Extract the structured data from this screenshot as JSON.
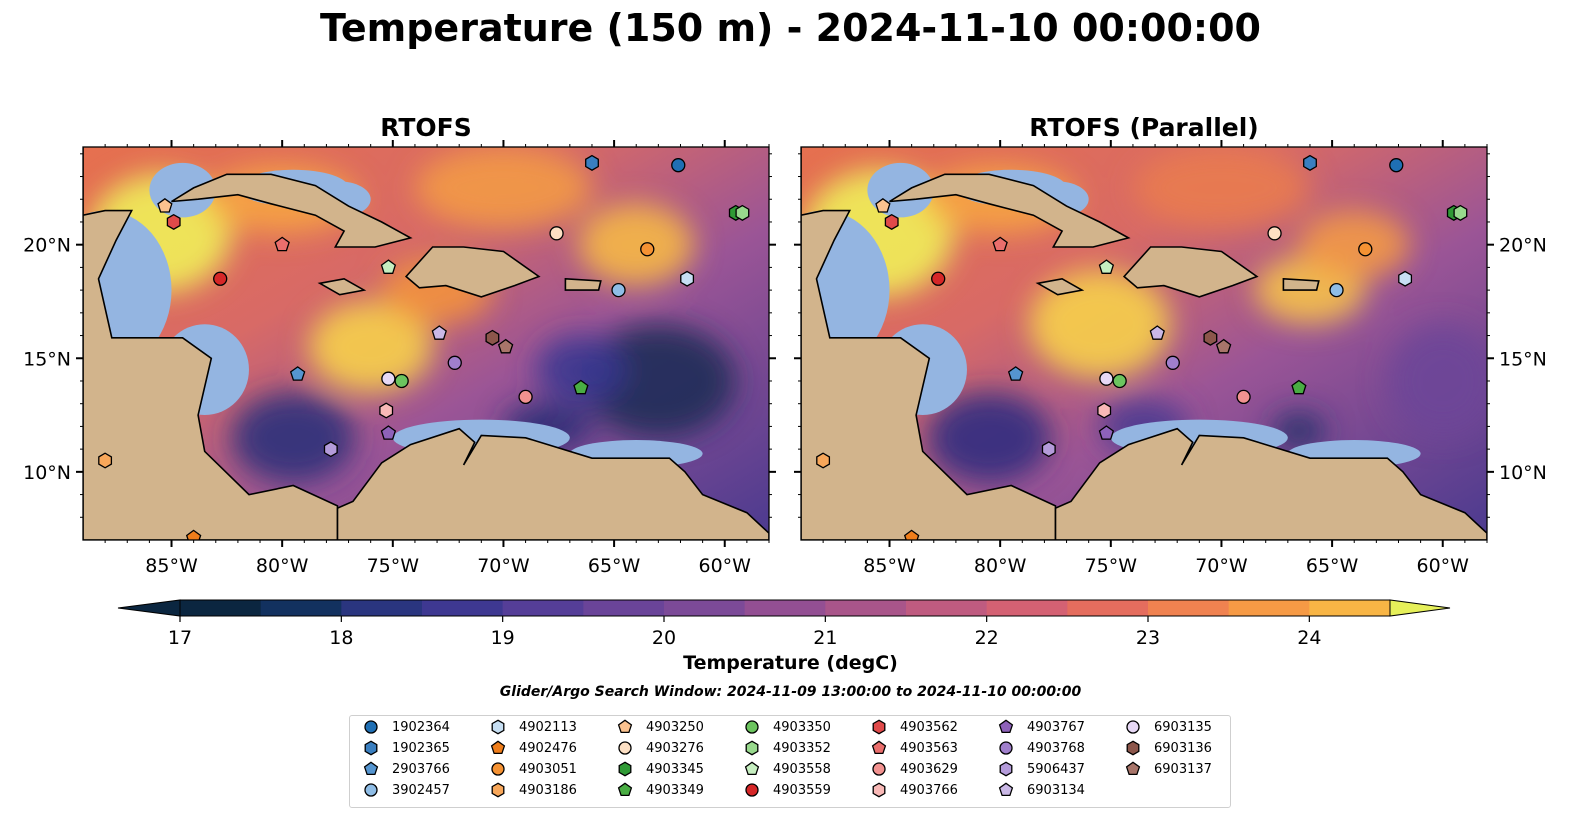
{
  "title": "Temperature (150 m) - 2024-11-10 00:00:00",
  "panels": [
    {
      "title": "RTOFS"
    },
    {
      "title": "RTOFS (Parallel)"
    }
  ],
  "lon_ticks": [
    "85°W",
    "80°W",
    "75°W",
    "70°W",
    "65°W",
    "60°W"
  ],
  "lat_ticks": [
    "20°N",
    "15°N",
    "10°N"
  ],
  "extent": {
    "lon_min": -89,
    "lon_max": -58,
    "lat_min": 7,
    "lat_max": 24.3
  },
  "colorbar": {
    "label": "Temperature (degC)",
    "ticks": [
      "17",
      "18",
      "19",
      "20",
      "21",
      "22",
      "23",
      "24"
    ],
    "min": 17,
    "max": 24.5,
    "step": 0.5,
    "colors": [
      "#0b2640",
      "#12315f",
      "#2a357f",
      "#3e3891",
      "#553e98",
      "#6a4499",
      "#7c4a98",
      "#934f93",
      "#a9558a",
      "#bf5b80",
      "#d46173",
      "#e56d5e",
      "#f08250",
      "#f69a45",
      "#f8b545",
      "#f4d04c",
      "#e6f05a"
    ]
  },
  "search_window": "Glider/Argo Search Window: 2024-11-09 13:00:00 to 2024-11-10 00:00:00",
  "legend": [
    {
      "id": "1902364",
      "marker": "circle",
      "color": "#1f6fb4"
    },
    {
      "id": "1902365",
      "marker": "hexagon",
      "color": "#3a7fc0"
    },
    {
      "id": "2903766",
      "marker": "pentagon",
      "color": "#5595d0"
    },
    {
      "id": "3902457",
      "marker": "circle",
      "color": "#8fbde6"
    },
    {
      "id": "4902113",
      "marker": "hexagon",
      "color": "#c7dff3"
    },
    {
      "id": "4902476",
      "marker": "pentagon",
      "color": "#ef7d1a"
    },
    {
      "id": "4903051",
      "marker": "circle",
      "color": "#f59233"
    },
    {
      "id": "4903186",
      "marker": "hexagon",
      "color": "#f8a75a"
    },
    {
      "id": "4903250",
      "marker": "pentagon",
      "color": "#fbc28f"
    },
    {
      "id": "4903276",
      "marker": "circle",
      "color": "#fde0c4"
    },
    {
      "id": "4903345",
      "marker": "hexagon",
      "color": "#2f9a35"
    },
    {
      "id": "4903349",
      "marker": "pentagon",
      "color": "#49ad43"
    },
    {
      "id": "4903350",
      "marker": "circle",
      "color": "#6cc45f"
    },
    {
      "id": "4903352",
      "marker": "hexagon",
      "color": "#98d98d"
    },
    {
      "id": "4903558",
      "marker": "pentagon",
      "color": "#c6eec0"
    },
    {
      "id": "4903559",
      "marker": "circle",
      "color": "#d62728"
    },
    {
      "id": "4903562",
      "marker": "hexagon",
      "color": "#e04a4a"
    },
    {
      "id": "4903563",
      "marker": "pentagon",
      "color": "#ea6e6c"
    },
    {
      "id": "4903629",
      "marker": "circle",
      "color": "#f29290"
    },
    {
      "id": "4903766",
      "marker": "hexagon",
      "color": "#f9b9b7"
    },
    {
      "id": "4903767",
      "marker": "pentagon",
      "color": "#8e62b9"
    },
    {
      "id": "4903768",
      "marker": "circle",
      "color": "#a07fcc"
    },
    {
      "id": "5906437",
      "marker": "hexagon",
      "color": "#b49bda"
    },
    {
      "id": "6903134",
      "marker": "pentagon",
      "color": "#cab8e6"
    },
    {
      "id": "6903135",
      "marker": "circle",
      "color": "#e7d8f5"
    },
    {
      "id": "6903136",
      "marker": "hexagon",
      "color": "#8c564b"
    },
    {
      "id": "6903137",
      "marker": "pentagon",
      "color": "#a8756a"
    }
  ],
  "observations": [
    {
      "id": "1902364",
      "lon": -62.1,
      "lat": 23.5
    },
    {
      "id": "1902365",
      "lon": -66.0,
      "lat": 23.6
    },
    {
      "id": "2903766",
      "lon": -79.3,
      "lat": 14.3
    },
    {
      "id": "3902457",
      "lon": -64.8,
      "lat": 18.0
    },
    {
      "id": "4902113",
      "lon": -61.7,
      "lat": 18.5
    },
    {
      "id": "4902476",
      "lon": -84.0,
      "lat": 7.1
    },
    {
      "id": "4903051",
      "lon": -63.5,
      "lat": 19.8
    },
    {
      "id": "4903186",
      "lon": -88.0,
      "lat": 10.5
    },
    {
      "id": "4903250",
      "lon": -85.3,
      "lat": 21.7
    },
    {
      "id": "4903276",
      "lon": -67.6,
      "lat": 20.5
    },
    {
      "id": "4903345",
      "lon": -59.5,
      "lat": 21.4
    },
    {
      "id": "4903349",
      "lon": -66.5,
      "lat": 13.7
    },
    {
      "id": "4903350",
      "lon": -74.6,
      "lat": 14.0
    },
    {
      "id": "4903352",
      "lon": -59.2,
      "lat": 21.4
    },
    {
      "id": "4903558",
      "lon": -75.2,
      "lat": 19.0
    },
    {
      "id": "4903559",
      "lon": -82.8,
      "lat": 18.5
    },
    {
      "id": "4903562",
      "lon": -84.9,
      "lat": 21.0
    },
    {
      "id": "4903563",
      "lon": -80.0,
      "lat": 20.0
    },
    {
      "id": "4903629",
      "lon": -69.0,
      "lat": 13.3
    },
    {
      "id": "4903766",
      "lon": -75.3,
      "lat": 12.7
    },
    {
      "id": "4903767",
      "lon": -75.2,
      "lat": 11.7
    },
    {
      "id": "4903768",
      "lon": -72.2,
      "lat": 14.8
    },
    {
      "id": "5906437",
      "lon": -77.8,
      "lat": 11.0
    },
    {
      "id": "6903134",
      "lon": -72.9,
      "lat": 16.1
    },
    {
      "id": "6903135",
      "lon": -75.2,
      "lat": 14.1
    },
    {
      "id": "6903136",
      "lon": -70.5,
      "lat": 15.9
    },
    {
      "id": "6903137",
      "lon": -69.9,
      "lat": 15.5
    }
  ]
}
